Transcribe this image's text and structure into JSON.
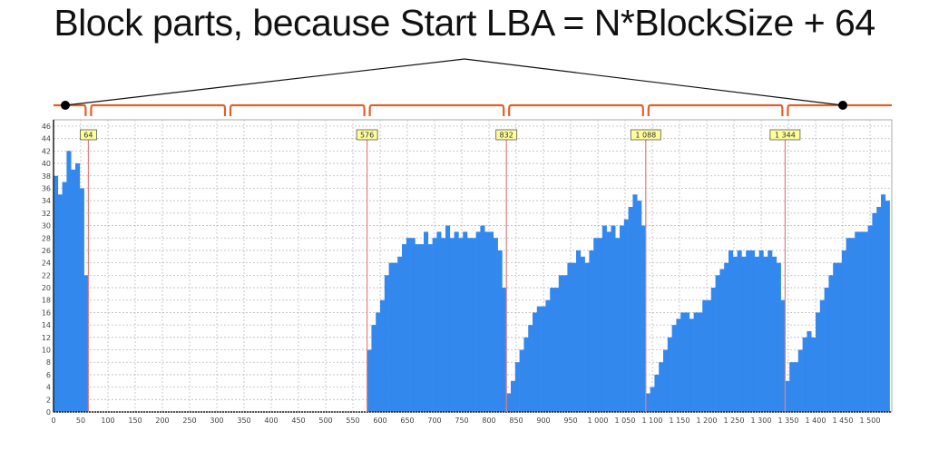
{
  "chart_data": {
    "type": "bar",
    "title": "Block parts, because Start LBA = N*BlockSize + 64",
    "xlabel": "",
    "ylabel": "",
    "xlim": [
      0,
      1536
    ],
    "ylim": [
      0,
      47
    ],
    "grid": true,
    "bar_color": "#3388ee",
    "marker_color": "#e08080",
    "bracket_color": "#e0602a",
    "x_ticks": [
      "0",
      "50",
      "100",
      "150",
      "200",
      "250",
      "300",
      "350",
      "400",
      "450",
      "500",
      "550",
      "600",
      "650",
      "700",
      "750",
      "800",
      "850",
      "900",
      "950",
      "1 000",
      "1 050",
      "1 100",
      "1 150",
      "1 200",
      "1 250",
      "1 300",
      "1 350",
      "1 400",
      "1 450",
      "1 500"
    ],
    "y_ticks": [
      "0",
      "2",
      "4",
      "6",
      "8",
      "10",
      "12",
      "14",
      "16",
      "18",
      "20",
      "22",
      "24",
      "26",
      "28",
      "30",
      "32",
      "34",
      "36",
      "38",
      "40",
      "42",
      "44",
      "46"
    ],
    "markers": [
      {
        "x": 64,
        "label": "64"
      },
      {
        "x": 576,
        "label": "576"
      },
      {
        "x": 832,
        "label": "832"
      },
      {
        "x": 1088,
        "label": "1 088"
      },
      {
        "x": 1344,
        "label": "1 344"
      }
    ],
    "bin_width": 8,
    "segments": [
      {
        "start": 0,
        "values": [
          38,
          35,
          37,
          42,
          39,
          40,
          36,
          22
        ]
      },
      {
        "start": 576,
        "values": [
          10,
          14,
          16,
          18,
          22,
          24,
          24,
          25,
          27,
          28,
          28,
          27,
          27,
          29,
          27,
          28,
          29,
          28,
          30,
          28,
          29,
          28,
          29,
          28,
          28,
          29,
          30,
          29,
          29,
          28,
          26,
          20
        ]
      },
      {
        "start": 832,
        "values": [
          3,
          5,
          8,
          10,
          12,
          14,
          16,
          17,
          17,
          18,
          20,
          20,
          22,
          22,
          24,
          24,
          26,
          25,
          24,
          26,
          28,
          28,
          30,
          29,
          30,
          28,
          30,
          31,
          33,
          35,
          34,
          30
        ]
      },
      {
        "start": 1088,
        "values": [
          3,
          4,
          6,
          8,
          10,
          12,
          14,
          15,
          16,
          16,
          15,
          16,
          16,
          18,
          18,
          20,
          22,
          23,
          24,
          26,
          25,
          26,
          25,
          26,
          26,
          25,
          26,
          25,
          26,
          25,
          24,
          18
        ]
      },
      {
        "start": 1344,
        "values": [
          5,
          8,
          8,
          10,
          12,
          13,
          12,
          16,
          18,
          20,
          22,
          24,
          24,
          26,
          28,
          28,
          29,
          29,
          29,
          30,
          32,
          33,
          35,
          34
        ]
      }
    ]
  }
}
